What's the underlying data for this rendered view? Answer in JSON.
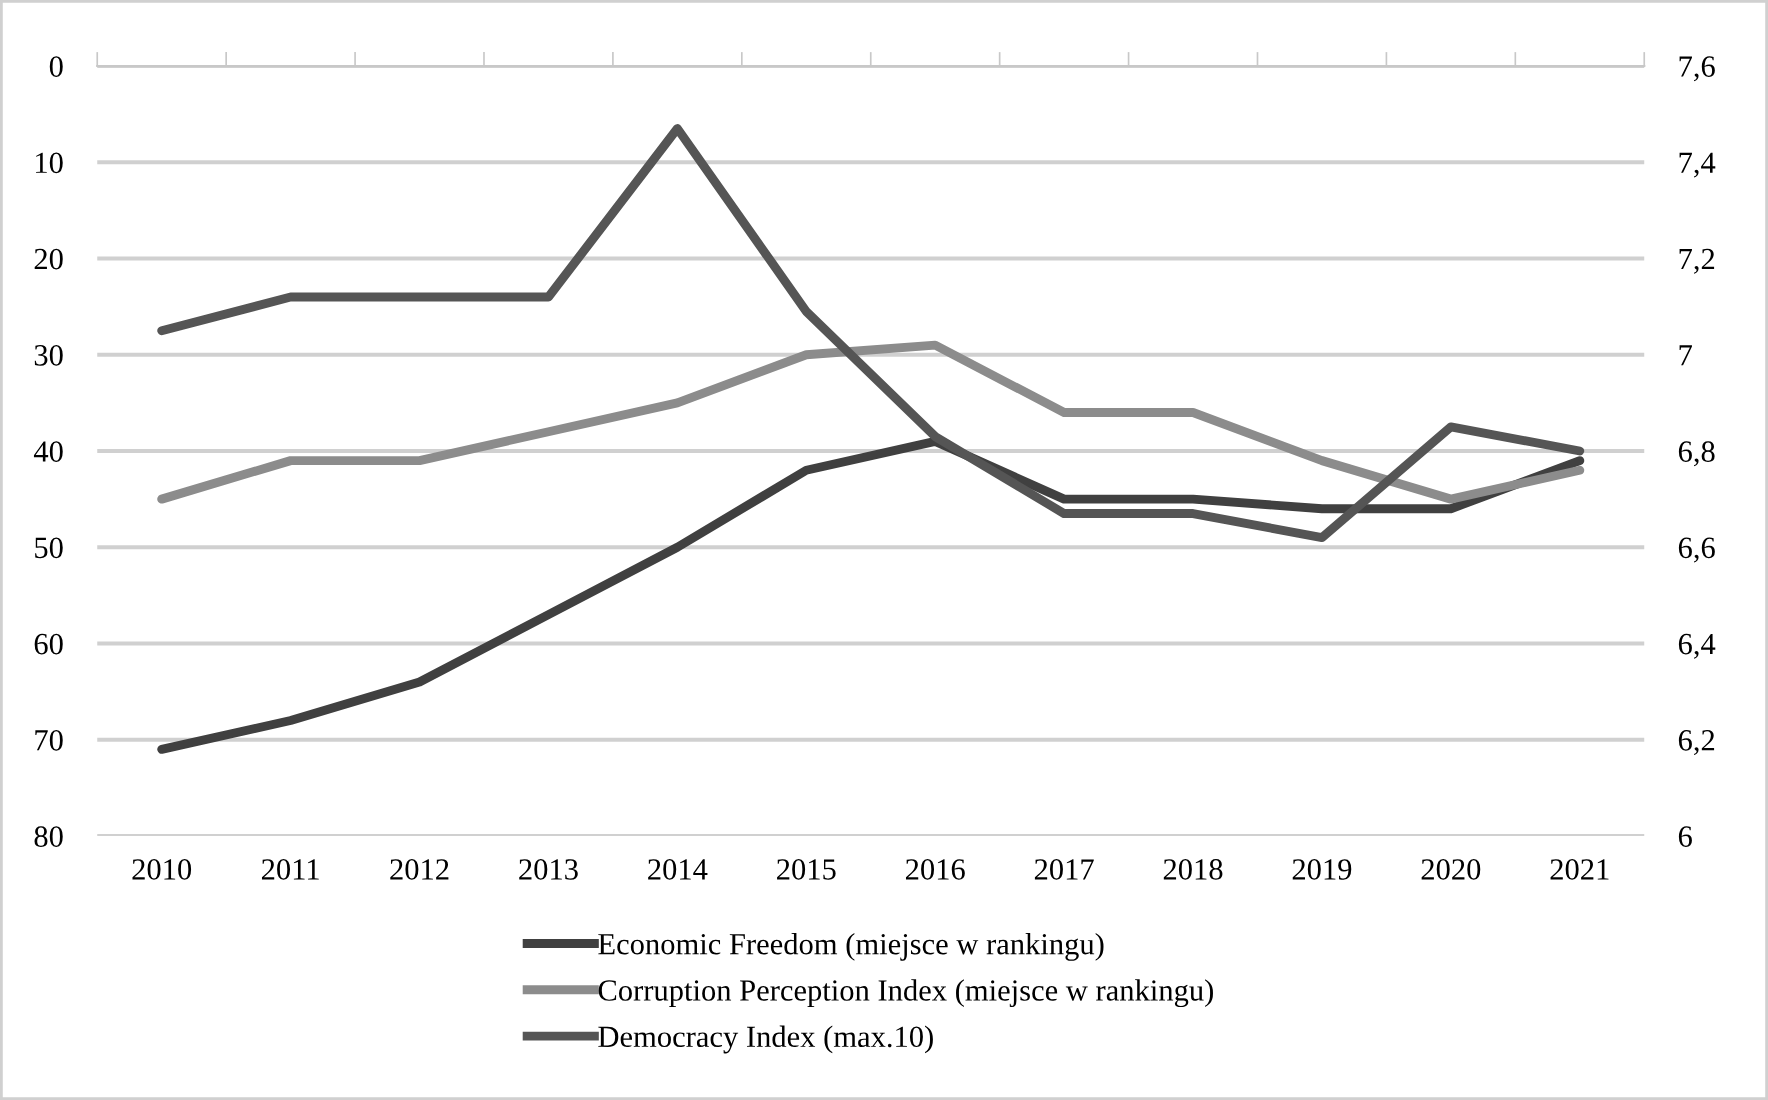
{
  "chart_data": {
    "type": "line",
    "categories": [
      "2010",
      "2011",
      "2012",
      "2013",
      "2014",
      "2015",
      "2016",
      "2017",
      "2018",
      "2019",
      "2020",
      "2021"
    ],
    "series": [
      {
        "name": "Economic Freedom (miejsce w rankingu)",
        "color": "#404040",
        "values": [
          71,
          68,
          64,
          57,
          50,
          42,
          39,
          45,
          45,
          46,
          46,
          41
        ]
      },
      {
        "name": "Corruption Perception Index (miejsce w rankingu)",
        "color": "#8c8c8c",
        "values": [
          45,
          41,
          41,
          38,
          35,
          30,
          29,
          36,
          36,
          41,
          45,
          42
        ]
      },
      {
        "name": "Democracy Index (max.10)",
        "color": "#555555",
        "axis": "y2",
        "values": [
          7.05,
          7.12,
          7.12,
          7.12,
          7.47,
          7.09,
          6.83,
          6.67,
          6.67,
          6.62,
          6.85,
          6.8
        ]
      }
    ],
    "ylim": [
      80,
      0
    ],
    "yticks": [
      0,
      10,
      20,
      30,
      40,
      50,
      60,
      70,
      80
    ],
    "y2lim": [
      6,
      7.6
    ],
    "y2ticks": [
      6,
      {
        "value": 6.2,
        "label": "6,2"
      },
      {
        "value": 6.4,
        "label": "6,4"
      },
      {
        "value": 6.6,
        "label": "6,6"
      },
      {
        "value": 6.8,
        "label": "6,8"
      },
      7,
      {
        "value": 7.2,
        "label": "7,2"
      },
      {
        "value": 7.4,
        "label": "7,4"
      },
      {
        "value": 7.6,
        "label": "7,6"
      }
    ],
    "grid": "y",
    "legend": "bottom",
    "marker": "none",
    "line_style": "solid"
  }
}
